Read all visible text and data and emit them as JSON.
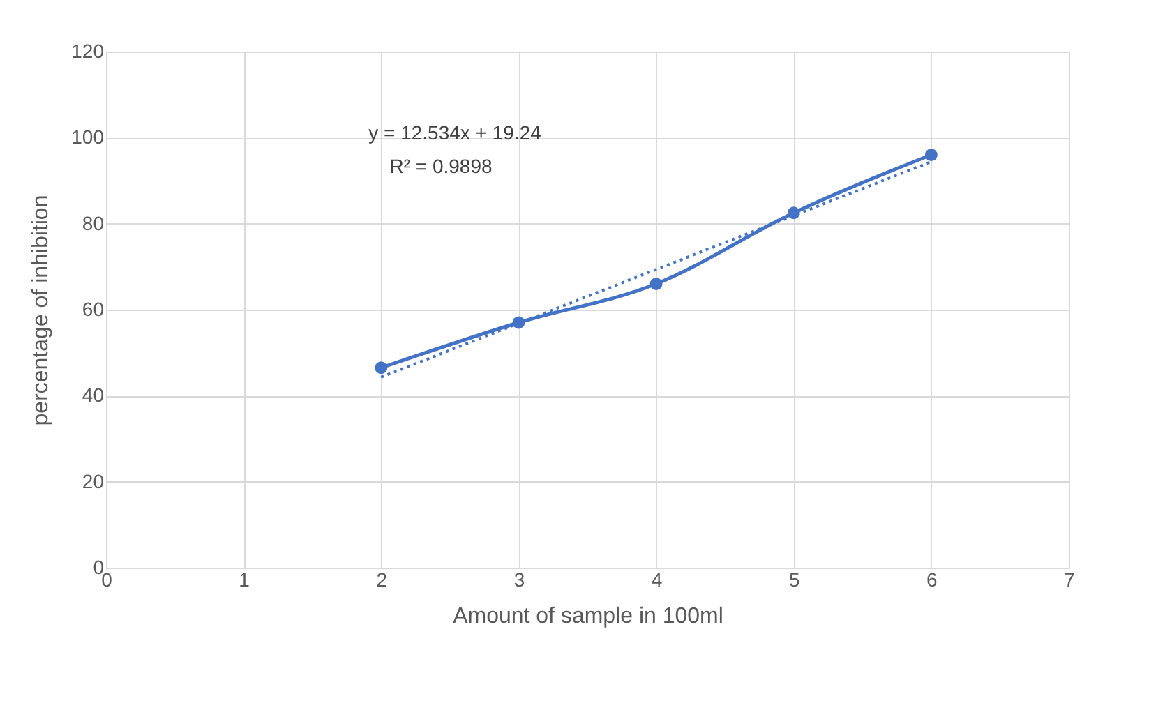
{
  "chart_data": {
    "type": "line",
    "xlabel": "Amount of sample in 100ml",
    "ylabel": "percentage of inhibition",
    "x": [
      2,
      3,
      4,
      5,
      6
    ],
    "series": [
      {
        "color": "#4472c4",
        "values": [
          46.5,
          57,
          66,
          82.5,
          96
        ],
        "marker": "circle",
        "line_style": "solid"
      },
      {
        "type": "line",
        "color": "#4472c4",
        "x": [
          2,
          6
        ],
        "values": [
          44.3,
          94.4
        ],
        "marker": "none",
        "line_style": "dotted"
      }
    ],
    "xlim": [
      0,
      7
    ],
    "xticks": [
      0,
      1,
      2,
      3,
      4,
      5,
      6,
      7
    ],
    "ylim": [
      0,
      120
    ],
    "yticks": [
      0,
      20,
      40,
      60,
      80,
      100,
      120
    ],
    "grid": true,
    "annotations": [
      "y = 12.534x + 19.24",
      "R² = 0.9898"
    ]
  }
}
